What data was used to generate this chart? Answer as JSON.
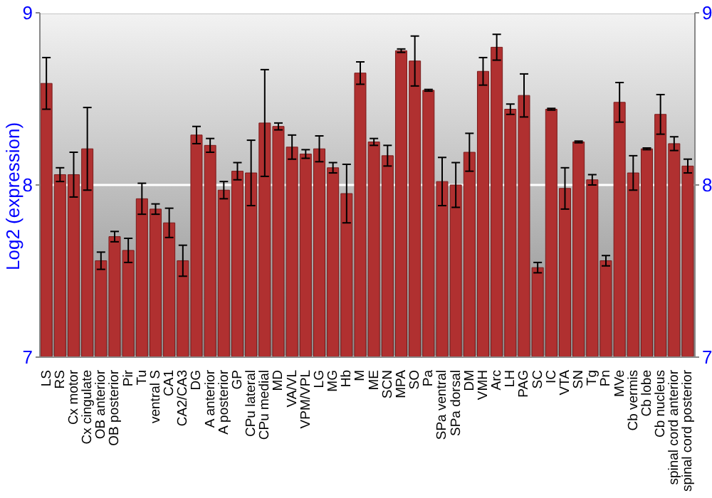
{
  "chart_data": {
    "type": "bar",
    "ylabel": "Log2 (expression)",
    "categories": [
      "LS",
      "RS",
      "Cx motor",
      "Cx cingulate",
      "OB anterior",
      "OB posterior",
      "Pir",
      "Tu",
      "ventral S",
      "CA1",
      "CA2/CA3",
      "DG",
      "A anterior",
      "A posterior",
      "GP",
      "CPu lateral",
      "CPu medial",
      "MD",
      "VA/VL",
      "VPM/VPL",
      "LG",
      "MG",
      "Hb",
      "M",
      "ME",
      "SCN",
      "MPA",
      "SO",
      "Pa",
      "SPa ventral",
      "SPa dorsal",
      "DM",
      "VMH",
      "Arc",
      "LH",
      "PAG",
      "SC",
      "IC",
      "VTA",
      "SN",
      "Tg",
      "Pn",
      "MVe",
      "Cb vermis",
      "Cb lobe",
      "Cb nucleus",
      "spinal cord anterior",
      "spinal cord posterior"
    ],
    "values": [
      8.59,
      8.06,
      8.06,
      8.21,
      7.56,
      7.7,
      7.62,
      7.92,
      7.86,
      7.78,
      7.56,
      8.29,
      8.23,
      7.97,
      8.08,
      8.07,
      8.36,
      8.34,
      8.22,
      8.18,
      8.21,
      8.1,
      7.95,
      8.65,
      8.25,
      8.17,
      8.78,
      8.72,
      8.55,
      8.02,
      8.0,
      8.19,
      8.66,
      8.8,
      8.44,
      8.52,
      7.52,
      8.44,
      7.98,
      8.25,
      8.03,
      7.56,
      8.48,
      8.07,
      8.21,
      8.41,
      8.24,
      8.11
    ],
    "errors": [
      0.15,
      0.04,
      0.13,
      0.24,
      0.05,
      0.03,
      0.07,
      0.09,
      0.03,
      0.085,
      0.09,
      0.05,
      0.04,
      0.05,
      0.05,
      0.19,
      0.31,
      0.02,
      0.07,
      0.025,
      0.075,
      0.03,
      0.17,
      0.065,
      0.02,
      0.06,
      0.01,
      0.145,
      0.005,
      0.14,
      0.13,
      0.11,
      0.08,
      0.075,
      0.03,
      0.125,
      0.03,
      0.005,
      0.12,
      0.005,
      0.03,
      0.03,
      0.115,
      0.1,
      0.005,
      0.115,
      0.04,
      0.04
    ],
    "color": "#b03030",
    "ylim": [
      7,
      9
    ],
    "yticks": [
      7,
      8,
      9
    ],
    "y2lim": [
      7,
      9
    ],
    "y2ticks": [
      7,
      8,
      9
    ],
    "grid": "y"
  }
}
